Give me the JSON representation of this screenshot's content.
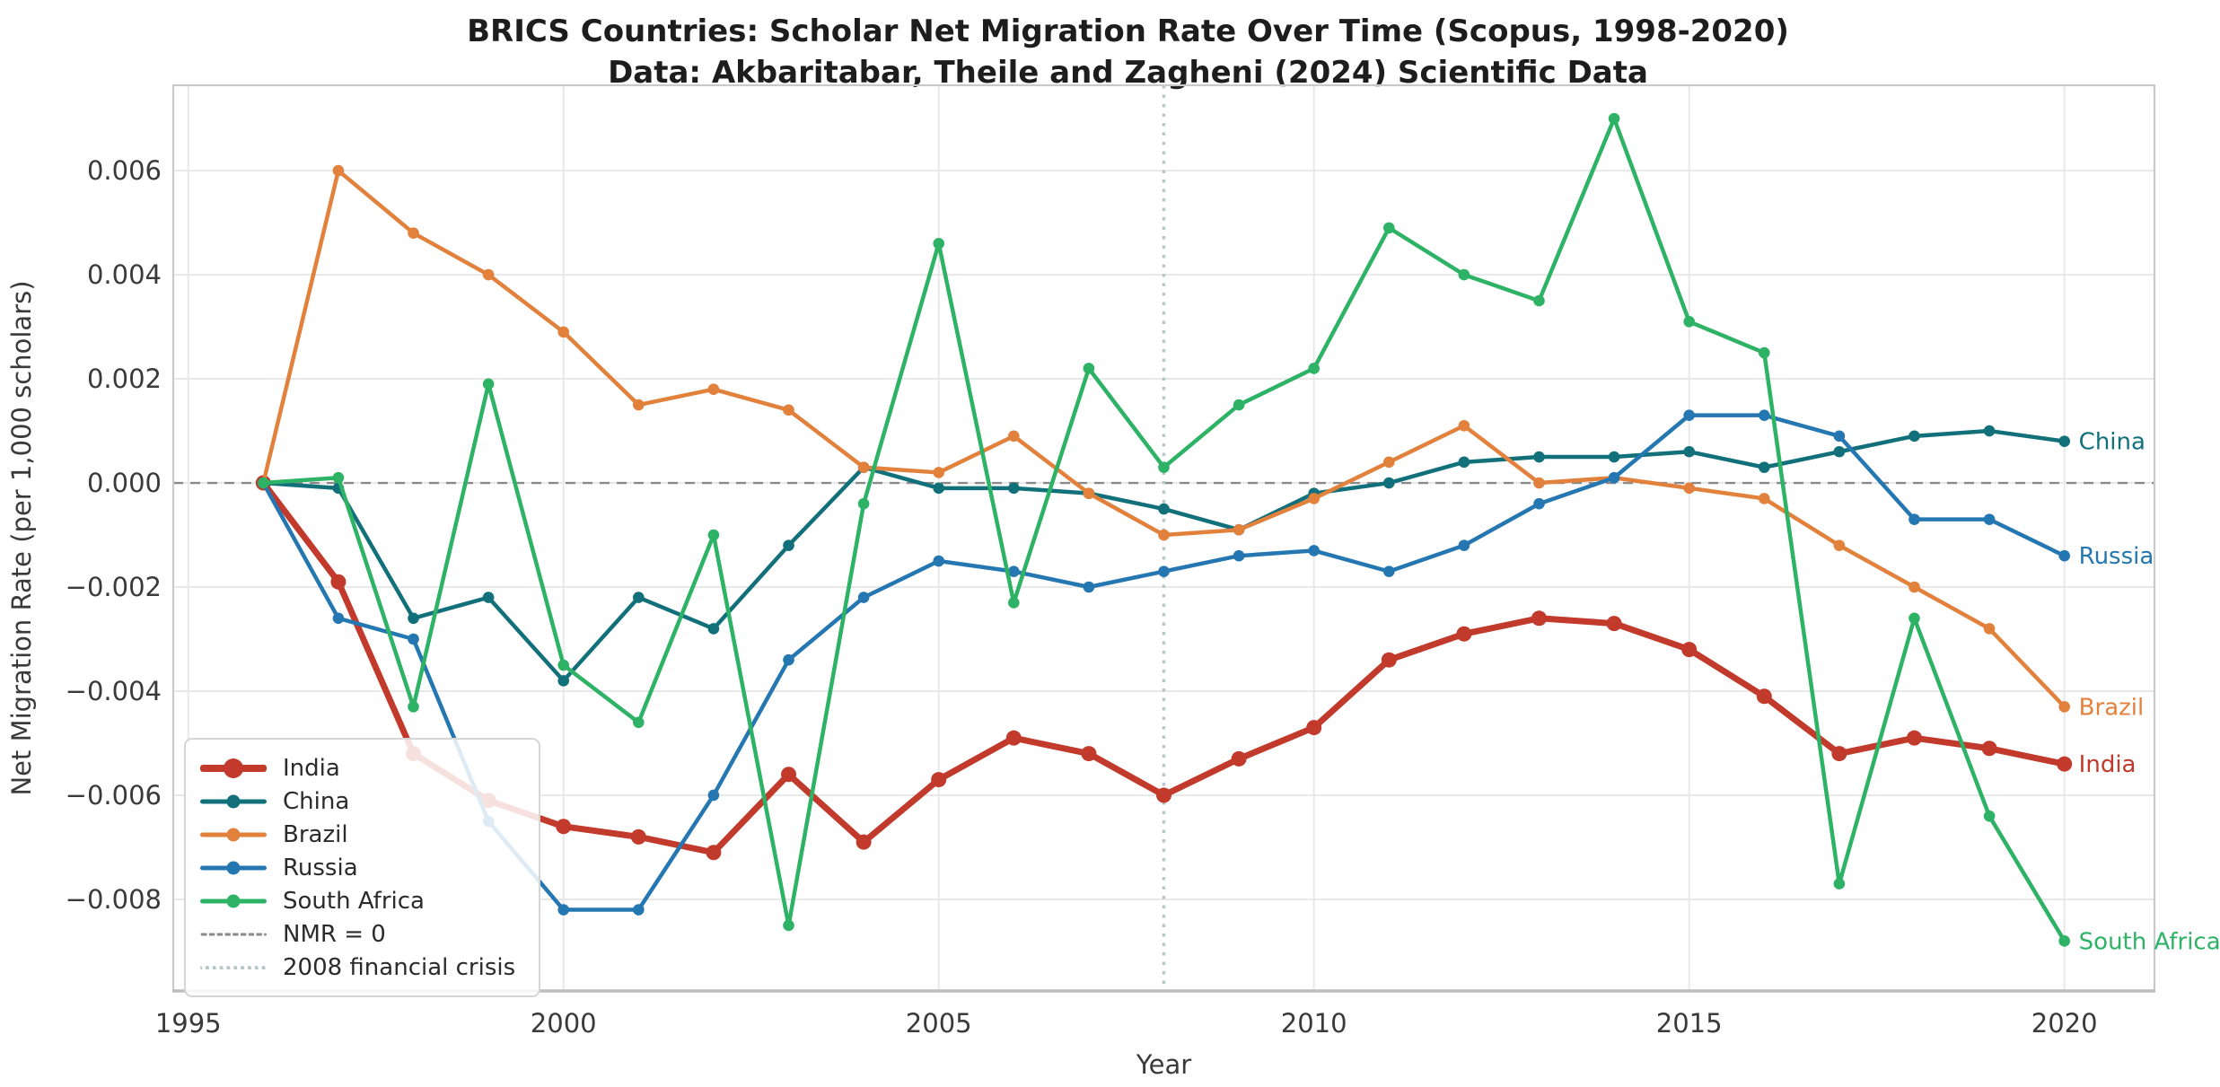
{
  "chart_data": {
    "type": "line",
    "title": "BRICS Countries: Scholar Net Migration Rate Over Time (Scopus, 1998-2020)",
    "subtitle": "Data: Akbaritabar, Theile and Zagheni (2024) Scientific Data",
    "xlabel": "Year",
    "ylabel": "Net Migration Rate (per 1,000 scholars)",
    "x_ticks": [
      1995,
      2000,
      2005,
      2010,
      2015,
      2020
    ],
    "y_ticks": [
      0.006,
      0.004,
      0.002,
      0,
      -0.002,
      -0.004,
      -0.006,
      -0.008
    ],
    "y_tick_labels": [
      "0.006",
      "0.004",
      "0.002",
      "0.000",
      "−0.002",
      "−0.004",
      "−0.006",
      "−0.008"
    ],
    "xlim": [
      1994.8,
      2021.2
    ],
    "ylim": [
      -0.00976,
      0.00764
    ],
    "grid": true,
    "legend_position": "lower left",
    "x": [
      1996,
      1997,
      1998,
      1999,
      2000,
      2001,
      2002,
      2003,
      2004,
      2005,
      2006,
      2007,
      2008,
      2009,
      2010,
      2011,
      2012,
      2013,
      2014,
      2015,
      2016,
      2017,
      2018,
      2019,
      2020
    ],
    "series": [
      {
        "name": "India",
        "color": "#c13a2b",
        "linewidth": 7,
        "markersize": 8.5,
        "values": [
          0,
          -0.0019,
          -0.0052,
          -0.0061,
          -0.0066,
          -0.0068,
          -0.0071,
          -0.0056,
          -0.0069,
          -0.0057,
          -0.0049,
          -0.0052,
          -0.006,
          -0.0053,
          -0.0047,
          -0.0034,
          -0.0029,
          -0.0026,
          -0.0027,
          -0.0032,
          -0.0041,
          -0.0052,
          -0.0049,
          -0.0051,
          -0.0054
        ]
      },
      {
        "name": "China",
        "color": "#11707a",
        "linewidth": 4.5,
        "markersize": 6.3,
        "values": [
          0,
          -0.0001,
          -0.0026,
          -0.0022,
          -0.0038,
          -0.0022,
          -0.0028,
          -0.0012,
          0.0003,
          -0.0001,
          -0.0001,
          -0.0002,
          -0.0005,
          -0.0009,
          -0.0002,
          0.0,
          0.0004,
          0.0005,
          0.0005,
          0.0006,
          0.0003,
          0.0006,
          0.0009,
          0.001,
          0.0008
        ]
      },
      {
        "name": "Brazil",
        "color": "#e1813c",
        "linewidth": 4.5,
        "markersize": 6.3,
        "values": [
          0,
          0.006,
          0.0048,
          0.004,
          0.0029,
          0.0015,
          0.0018,
          0.0014,
          0.0003,
          0.0002,
          0.0009,
          -0.0002,
          -0.001,
          -0.0009,
          -0.0003,
          0.0004,
          0.0011,
          0.0,
          0.0001,
          -0.0001,
          -0.0003,
          -0.0012,
          -0.002,
          -0.0028,
          -0.0043
        ]
      },
      {
        "name": "Russia",
        "color": "#2577b2",
        "linewidth": 4.5,
        "markersize": 6.3,
        "values": [
          0,
          -0.0026,
          -0.003,
          -0.0065,
          -0.0082,
          -0.0082,
          -0.006,
          -0.0034,
          -0.0022,
          -0.0015,
          -0.0017,
          -0.002,
          -0.0017,
          -0.0014,
          -0.0013,
          -0.0017,
          -0.0012,
          -0.0004,
          0.0001,
          0.0013,
          0.0013,
          0.0009,
          -0.0007,
          -0.0007,
          -0.0014
        ]
      },
      {
        "name": "South Africa",
        "color": "#2db266",
        "linewidth": 4.5,
        "markersize": 6.3,
        "values": [
          0,
          0.0001,
          -0.0043,
          0.0019,
          -0.0035,
          -0.0046,
          -0.001,
          -0.0085,
          -0.0004,
          0.0046,
          -0.0023,
          0.0022,
          0.0003,
          0.0015,
          0.0022,
          0.0049,
          0.004,
          0.0035,
          0.007,
          0.0031,
          0.0025,
          -0.0077,
          -0.0026,
          -0.0064,
          -0.0088
        ]
      }
    ],
    "reference_lines": [
      {
        "label": "NMR = 0",
        "axis": "y",
        "value": 0,
        "style": "dashed",
        "color": "#8a8a8a"
      },
      {
        "label": "2008 financial crisis",
        "axis": "x",
        "value": 2008,
        "style": "dotted",
        "color": "#b7c6ca"
      }
    ],
    "end_labels": [
      {
        "series": "China",
        "text": "China"
      },
      {
        "series": "Russia",
        "text": "Russia"
      },
      {
        "series": "Brazil",
        "text": "Brazil"
      },
      {
        "series": "India",
        "text": "India"
      },
      {
        "series": "South Africa",
        "text": "South Africa"
      }
    ],
    "legend_entries": [
      "India",
      "China",
      "Brazil",
      "Russia",
      "South Africa",
      "NMR = 0",
      "2008 financial crisis"
    ]
  },
  "styles": {
    "grid_color": "#e8e8e8",
    "spine_color": "#c9c9c9",
    "tick_label_color": "#3a3a3a",
    "title_color": "#1d1d1d"
  }
}
